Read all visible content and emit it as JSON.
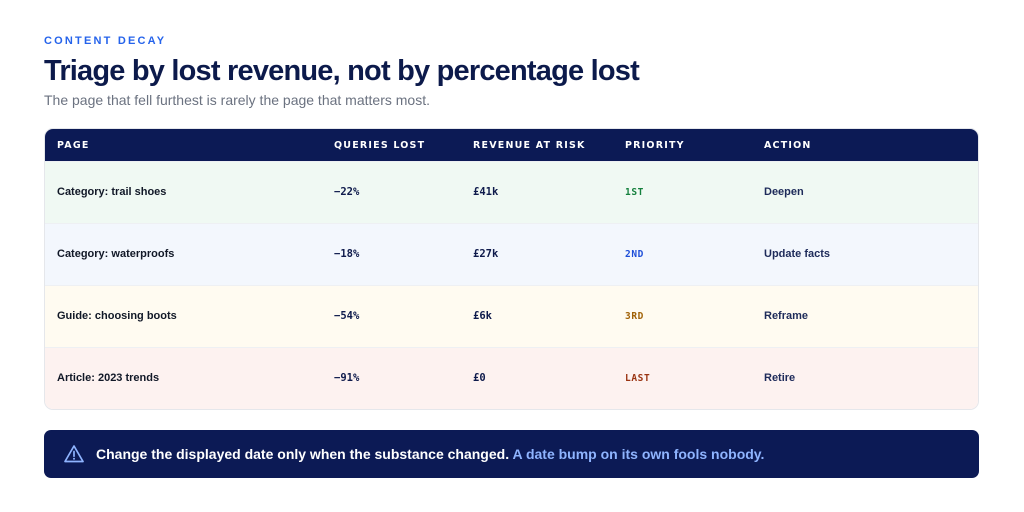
{
  "header": {
    "eyebrow": "CONTENT DECAY",
    "title": "Triage by lost revenue, not by percentage lost",
    "subtitle": "The page that fell furthest is rarely the page that matters most."
  },
  "table": {
    "columns": [
      "PAGE",
      "QUERIES LOST",
      "REVENUE AT RISK",
      "PRIORITY",
      "ACTION"
    ],
    "rows": [
      {
        "page": "Category: trail shoes",
        "queries_lost": "−22%",
        "revenue": "£41k",
        "priority": "1ST",
        "action": "Deepen",
        "bg": "#f0f9f3",
        "priority_color": "#15803d"
      },
      {
        "page": "Category: waterproofs",
        "queries_lost": "−18%",
        "revenue": "£27k",
        "priority": "2ND",
        "action": "Update facts",
        "bg": "#f3f7fd",
        "priority_color": "#1d4ed8"
      },
      {
        "page": "Guide: choosing boots",
        "queries_lost": "−54%",
        "revenue": "£6k",
        "priority": "3RD",
        "action": "Reframe",
        "bg": "#fffbf1",
        "priority_color": "#a16207"
      },
      {
        "page": "Article: 2023 trends",
        "queries_lost": "−91%",
        "revenue": "£0",
        "priority": "LAST",
        "action": "Retire",
        "bg": "#fdf2f0",
        "priority_color": "#9a3412"
      }
    ]
  },
  "callout": {
    "icon": "warning-icon",
    "text": "Change the displayed date only when the substance changed.",
    "highlight": "A date bump on its own fools nobody."
  },
  "colors": {
    "accent": "#2563eb",
    "navy": "#0c1a55",
    "highlight": "#8fb4ff"
  }
}
